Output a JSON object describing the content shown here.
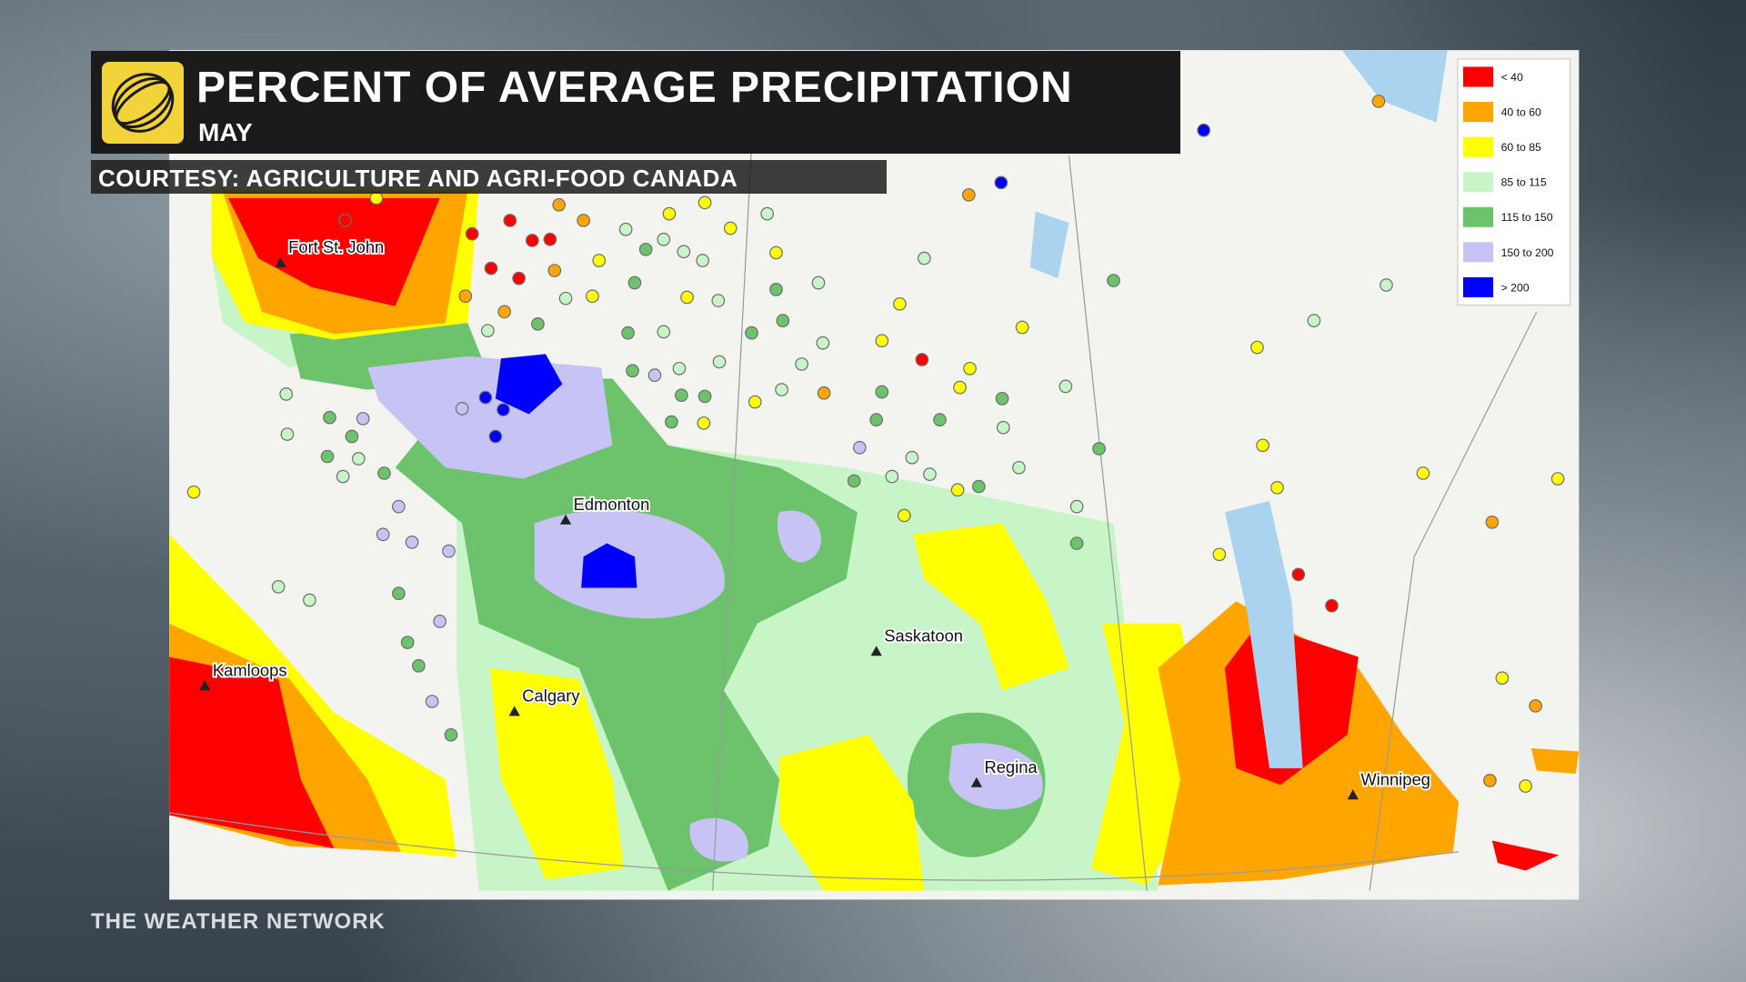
{
  "header": {
    "title": "PERCENT OF AVERAGE PRECIPITATION",
    "subtitle": "MAY",
    "courtesy": "COURTESY: AGRICULTURE AND AGRI-FOOD CANADA"
  },
  "legend": [
    {
      "label": "< 40",
      "color": "#ff0000"
    },
    {
      "label": "40 to 60",
      "color": "#ffa500"
    },
    {
      "label": "60 to 85",
      "color": "#ffff00"
    },
    {
      "label": "85 to 115",
      "color": "#c8f5c8"
    },
    {
      "label": "115 to 150",
      "color": "#6cc36c"
    },
    {
      "label": "150 to 200",
      "color": "#c8c3f5"
    },
    {
      "label": "> 200",
      "color": "#0000ff"
    }
  ],
  "cities": [
    "Fort St. John",
    "Edmonton",
    "Saskatoon",
    "Kamloops",
    "Calgary",
    "Regina",
    "Winnipeg"
  ],
  "footer": "THE WEATHER NETWORK"
}
